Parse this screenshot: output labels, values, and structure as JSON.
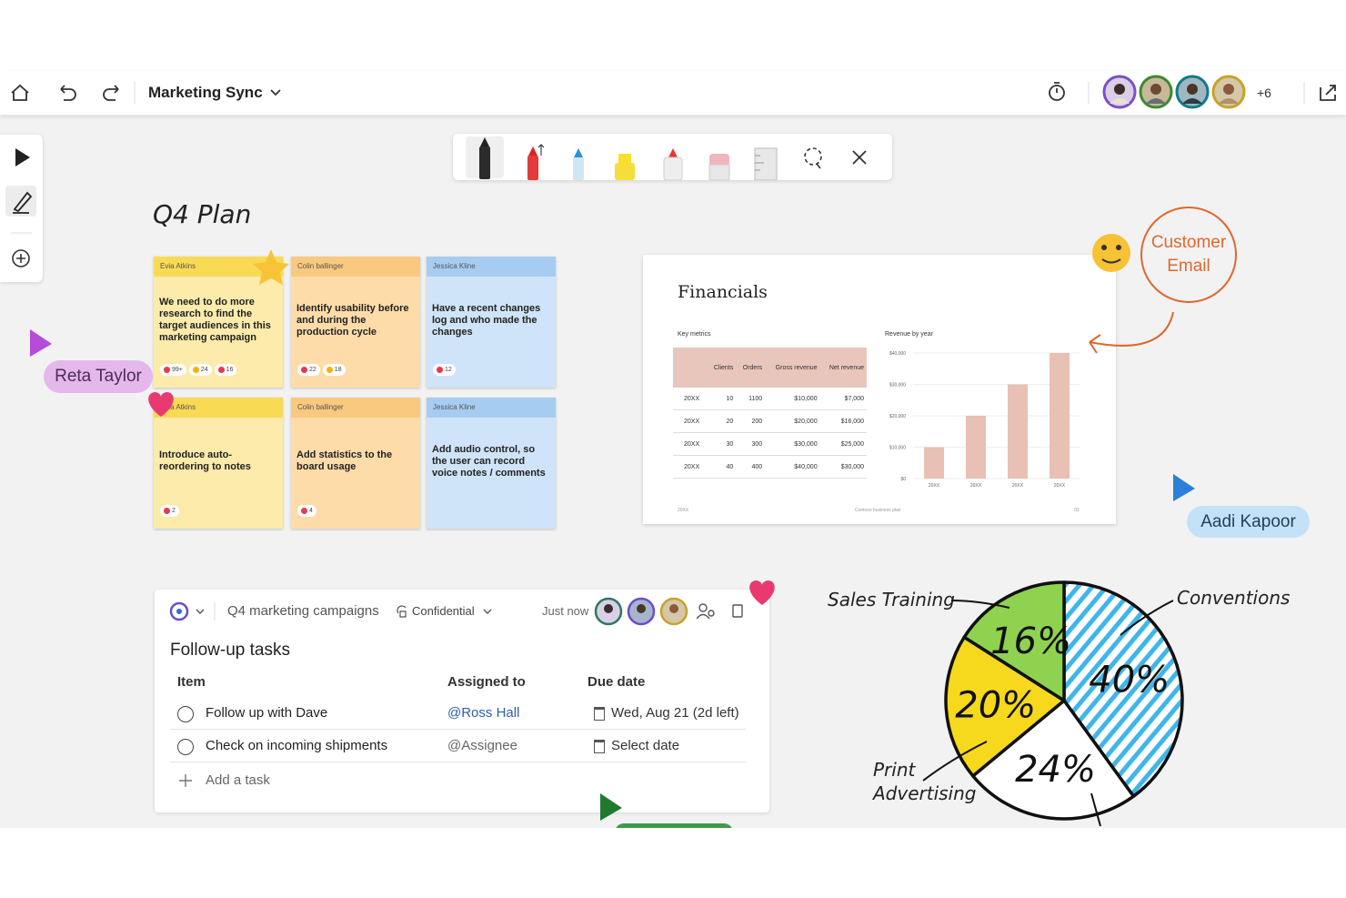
{
  "header": {
    "title": "Marketing Sync",
    "more_participants": "+6"
  },
  "canvas": {
    "heading": "Q4 Plan"
  },
  "notes": [
    {
      "author": "Evia Atkins",
      "text": "We need to do more research to find the target audiences in this marketing campaign",
      "reactions": [
        "99+",
        "24",
        "16"
      ],
      "color": "#fcebab",
      "header_color": "#f9da55"
    },
    {
      "author": "Colin ballinger",
      "text": "Identify usability before and during the production cycle",
      "reactions": [
        "22",
        "18"
      ],
      "color": "#fddcaa",
      "header_color": "#f9c97f"
    },
    {
      "author": "Jessica Kline",
      "text": "Have a recent changes log and who made the changes",
      "reactions": [
        "12"
      ],
      "color": "#cfe4f8",
      "header_color": "#a6cdf1"
    },
    {
      "author": "Evia Atkins",
      "text": "Introduce auto-reordering to notes",
      "reactions": [
        "2"
      ],
      "color": "#fcebab",
      "header_color": "#f9da55"
    },
    {
      "author": "Colin ballinger",
      "text": "Add statistics to the board usage",
      "reactions": [
        "4"
      ],
      "color": "#fddcaa",
      "header_color": "#f9c97f"
    },
    {
      "author": "Jessica Kline",
      "text": "Add audio control, so the user can record voice notes / comments",
      "reactions": [],
      "color": "#cfe4f8",
      "header_color": "#a6cdf1"
    }
  ],
  "cursors": [
    {
      "name": "Reta Taylor"
    },
    {
      "name": "Aadi Kapoor"
    }
  ],
  "financials": {
    "title": "Financials",
    "table": {
      "caption": "Key metrics",
      "columns": [
        "Clients",
        "Orders",
        "Gross revenue",
        "Net revenue"
      ],
      "rows": [
        [
          "20XX",
          "10",
          "1100",
          "$10,000",
          "$7,000"
        ],
        [
          "20XX",
          "20",
          "200",
          "$20,000",
          "$16,000"
        ],
        [
          "20XX",
          "30",
          "300",
          "$30,000",
          "$25,000"
        ],
        [
          "20XX",
          "40",
          "400",
          "$40,000",
          "$30,000"
        ]
      ]
    },
    "chart": {
      "type": "bar",
      "title": "Revenue by year",
      "categories": [
        "20XX",
        "20XX",
        "20XX",
        "20XX"
      ],
      "values": [
        10000,
        20000,
        30000,
        40000
      ],
      "color": "#e8c0b4",
      "ylim": [
        0,
        40000
      ],
      "yticks": [
        {
          "value": 0,
          "label": "$0"
        },
        {
          "value": 10000,
          "label": "$10,000"
        },
        {
          "value": 20000,
          "label": "$20,000"
        },
        {
          "value": 30000,
          "label": "$30,000"
        },
        {
          "value": 40000,
          "label": "$40,000"
        }
      ],
      "grid": true
    },
    "footer": {
      "left": "20XX",
      "center": "Contoso business plan",
      "right": "03"
    }
  },
  "annotation": "Customer Email",
  "loop": {
    "workspace": "Q4 marketing campaigns",
    "label": "Confidential",
    "timestamp": "Just now",
    "title": "Follow-up tasks",
    "columns": [
      "Item",
      "Assigned to",
      "Due date"
    ],
    "rows": [
      [
        "Follow up with Dave",
        "@Ross Hall",
        "Wed, Aug 21 (2d left)"
      ],
      [
        "Check on incoming shipments",
        "@Assignee",
        "Select date"
      ]
    ],
    "add_task": "Add a task"
  },
  "pie": {
    "type": "pie",
    "categories": [
      "Conventions",
      null,
      "Print Advertising",
      "Sales Training"
    ],
    "values": [
      40,
      24,
      20,
      16
    ],
    "value_labels": [
      "40%",
      "24%",
      "20%",
      "16%"
    ],
    "colors": [
      "#3fb6ea",
      "#ffffff",
      "#f6d81c",
      "#8fd24f"
    ]
  }
}
